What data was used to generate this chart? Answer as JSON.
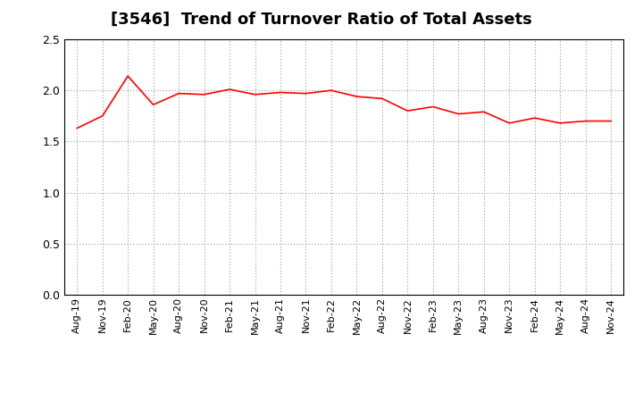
{
  "title": "[3546]  Trend of Turnover Ratio of Total Assets",
  "title_fontsize": 13,
  "line_color": "#FF0000",
  "background_color": "#FFFFFF",
  "plot_background_color": "#FFFFFF",
  "ylim": [
    0.0,
    2.5
  ],
  "yticks": [
    0.0,
    0.5,
    1.0,
    1.5,
    2.0,
    2.5
  ],
  "grid_color": "#999999",
  "labels": [
    "Aug-19",
    "Nov-19",
    "Feb-20",
    "May-20",
    "Aug-20",
    "Nov-20",
    "Feb-21",
    "May-21",
    "Aug-21",
    "Nov-21",
    "Feb-22",
    "May-22",
    "Aug-22",
    "Nov-22",
    "Feb-23",
    "May-23",
    "Aug-23",
    "Nov-23",
    "Feb-24",
    "May-24",
    "Aug-24",
    "Nov-24"
  ],
  "values": [
    1.63,
    1.75,
    2.14,
    1.86,
    1.97,
    1.96,
    2.01,
    1.96,
    1.98,
    1.97,
    2.0,
    1.94,
    1.92,
    1.8,
    1.84,
    1.77,
    1.79,
    1.68,
    1.73,
    1.68,
    1.7,
    1.7
  ]
}
